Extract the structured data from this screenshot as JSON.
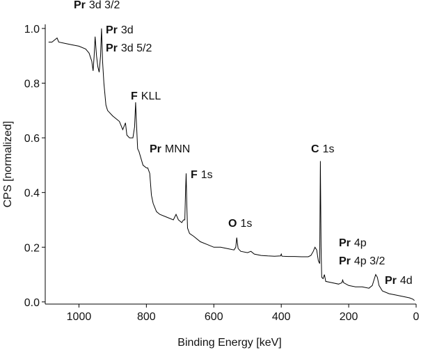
{
  "chart_data": {
    "type": "line",
    "x_label": "Binding Energy [keV]",
    "y_label": "CPS [normalized]",
    "xlim": [
      1100,
      0
    ],
    "ylim": [
      -0.008,
      1.015
    ],
    "xticks": [
      1000,
      800,
      600,
      400,
      200,
      0
    ],
    "yticks": [
      {
        "value": 0,
        "label": "0.0"
      },
      0.2,
      0.4,
      0.6,
      0.8,
      {
        "value": 1,
        "label": "1.0"
      }
    ],
    "color": "#000000",
    "x": [
      1090,
      1080,
      1070,
      1065,
      1060,
      1040,
      1020,
      1000,
      980,
      970,
      962,
      958,
      955,
      952,
      948,
      944,
      940,
      936,
      933,
      930,
      926,
      920,
      915,
      900,
      880,
      870,
      862,
      858,
      850,
      840,
      835,
      832,
      830,
      826,
      822,
      810,
      800,
      796,
      790,
      785,
      780,
      770,
      760,
      740,
      720,
      712,
      705,
      695,
      690,
      686,
      684,
      682,
      680,
      678,
      672,
      660,
      640,
      620,
      600,
      580,
      560,
      540,
      535,
      532,
      528,
      520,
      500,
      490,
      480,
      460,
      440,
      420,
      402,
      400,
      398,
      380,
      360,
      340,
      320,
      312,
      305,
      300,
      295,
      290,
      286,
      284,
      282,
      280,
      276,
      272,
      268,
      250,
      230,
      220,
      218,
      215,
      200,
      180,
      160,
      140,
      130,
      125,
      120,
      115,
      110,
      100,
      80,
      60,
      40,
      20,
      10,
      5
    ],
    "values": [
      0.95,
      0.95,
      0.96,
      0.965,
      0.95,
      0.945,
      0.94,
      0.935,
      0.925,
      0.91,
      0.88,
      0.845,
      0.9,
      0.97,
      0.9,
      0.86,
      0.84,
      0.9,
      1.0,
      0.88,
      0.8,
      0.72,
      0.7,
      0.68,
      0.66,
      0.63,
      0.655,
      0.61,
      0.6,
      0.6,
      0.64,
      0.73,
      0.67,
      0.56,
      0.55,
      0.5,
      0.49,
      0.49,
      0.47,
      0.39,
      0.36,
      0.33,
      0.32,
      0.31,
      0.3,
      0.32,
      0.3,
      0.29,
      0.3,
      0.3,
      0.4,
      0.47,
      0.35,
      0.27,
      0.25,
      0.24,
      0.22,
      0.21,
      0.2,
      0.2,
      0.195,
      0.19,
      0.2,
      0.235,
      0.195,
      0.185,
      0.18,
      0.185,
      0.175,
      0.17,
      0.168,
      0.167,
      0.168,
      0.175,
      0.167,
      0.166,
      0.166,
      0.165,
      0.165,
      0.17,
      0.185,
      0.2,
      0.19,
      0.15,
      0.14,
      0.515,
      0.2,
      0.09,
      0.085,
      0.1,
      0.075,
      0.07,
      0.065,
      0.07,
      0.08,
      0.07,
      0.06,
      0.055,
      0.055,
      0.05,
      0.06,
      0.08,
      0.1,
      0.09,
      0.06,
      0.04,
      0.03,
      0.025,
      0.02,
      0.015,
      0.01,
      0.005
    ],
    "annotations": [
      {
        "element": "Pr",
        "level": "3d 3/2"
      },
      {
        "element": "Pr",
        "level": "3d"
      },
      {
        "element": "Pr",
        "level": "3d 5/2"
      },
      {
        "element": "F",
        "level": "KLL"
      },
      {
        "element": "Pr",
        "level": "MNN"
      },
      {
        "element": "F",
        "level": "1s"
      },
      {
        "element": "C",
        "level": "1s"
      },
      {
        "element": "O",
        "level": "1s"
      },
      {
        "element": "Pr",
        "level": "4p"
      },
      {
        "element": "Pr",
        "level": "4p 3/2"
      },
      {
        "element": "Pr",
        "level": "4d"
      }
    ]
  }
}
